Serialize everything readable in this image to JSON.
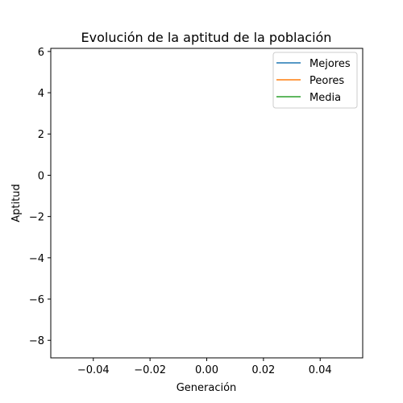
{
  "chart_data": {
    "type": "line",
    "title": "Evolución de la aptitud de la población",
    "xlabel": "Generación",
    "ylabel": "Aptitud",
    "xlim": [
      -0.055,
      0.055
    ],
    "ylim": [
      -8.85,
      6.15
    ],
    "x_ticks": [
      -0.04,
      -0.02,
      0.0,
      0.02,
      0.04
    ],
    "x_tick_labels": [
      "−0.04",
      "−0.02",
      "0.00",
      "0.02",
      "0.04"
    ],
    "y_ticks": [
      -8,
      -6,
      -4,
      -2,
      0,
      2,
      4,
      6
    ],
    "y_tick_labels": [
      "−8",
      "−6",
      "−4",
      "−2",
      "0",
      "2",
      "4",
      "6"
    ],
    "grid": false,
    "legend_position": "top-right",
    "series": [
      {
        "name": "Mejores",
        "color": "#1f77b4",
        "x": [],
        "y": []
      },
      {
        "name": "Peores",
        "color": "#ff7f0e",
        "x": [],
        "y": []
      },
      {
        "name": "Media",
        "color": "#2ca02c",
        "x": [],
        "y": []
      }
    ]
  }
}
